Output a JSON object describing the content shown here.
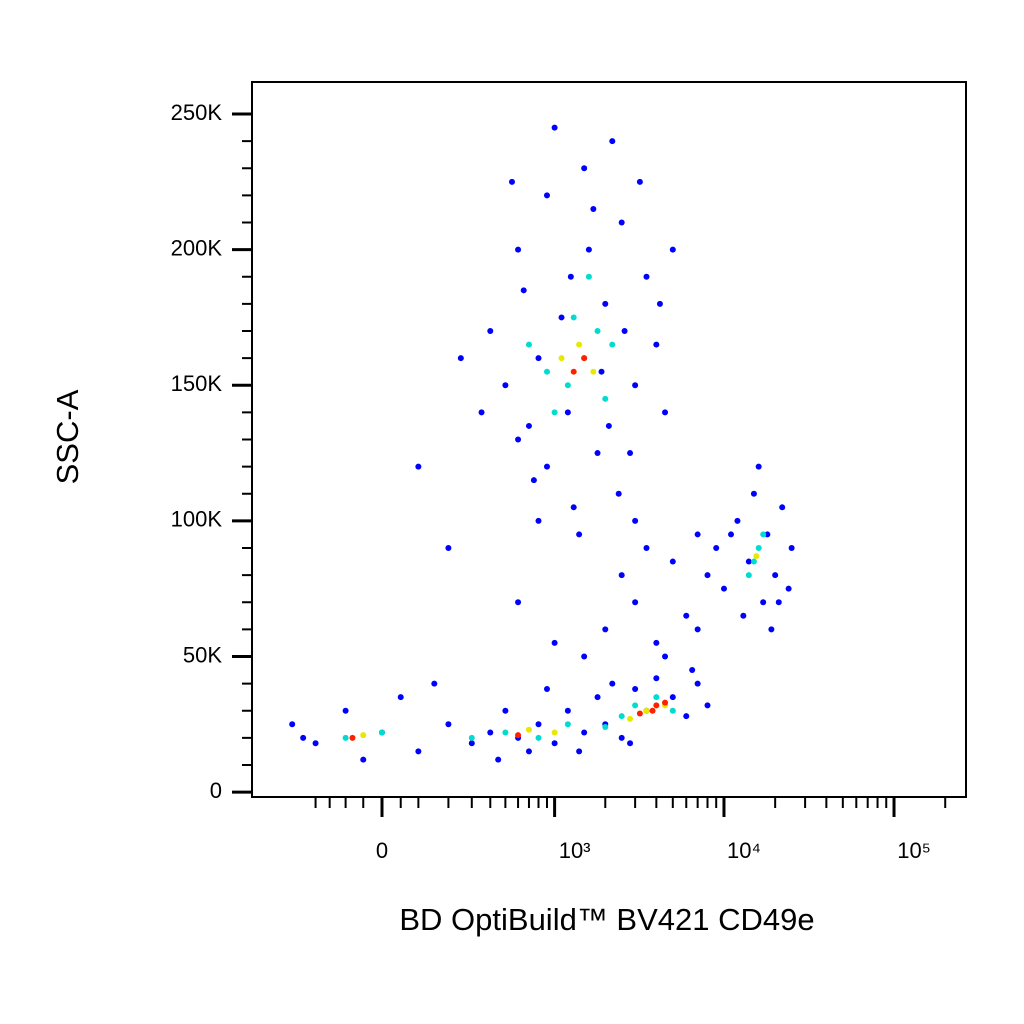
{
  "chart_data": {
    "type": "scatter",
    "x_label": "BD OptiBuild™ BV421 CD49e",
    "y_label": "SSC-A",
    "xscale": "asinh",
    "xscale_width": 195,
    "xlim": [
      -550,
      265000
    ],
    "ylim": [
      -1800,
      261800
    ],
    "xticks": [
      0,
      {
        "value": 1000,
        "label": "10³"
      },
      {
        "value": 10000,
        "label": "10⁴"
      },
      {
        "value": 100000,
        "label": "10⁵"
      }
    ],
    "xminor_ticks": [
      -200,
      -150,
      -100,
      -50,
      50,
      100,
      200,
      300,
      400,
      500,
      600,
      700,
      800,
      900,
      2000,
      3000,
      4000,
      5000,
      6000,
      7000,
      8000,
      9000,
      20000,
      30000,
      40000,
      50000,
      60000,
      70000,
      80000,
      90000,
      200000
    ],
    "yticks": [
      0,
      {
        "value": 50000,
        "label": "50K"
      },
      {
        "value": 100000,
        "label": "100K"
      },
      {
        "value": 150000,
        "label": "150K"
      },
      {
        "value": 200000,
        "label": "200K"
      },
      {
        "value": 250000,
        "label": "250K"
      }
    ],
    "yminor_ticks": [
      10000,
      20000,
      30000,
      40000,
      60000,
      70000,
      80000,
      90000,
      110000,
      120000,
      130000,
      140000,
      160000,
      170000,
      180000,
      190000,
      210000,
      220000,
      230000,
      240000
    ],
    "series": [
      {
        "color": "#0000ff",
        "x": [
          800,
          1200,
          2000,
          600,
          1500,
          3000,
          400,
          900,
          2500,
          1800,
          700,
          3500,
          1000,
          2200,
          500,
          1300,
          4000,
          2800,
          650,
          1600,
          1100,
          350,
          2400,
          900,
          3200,
          1400,
          5000,
          4500,
          750,
          1900,
          250,
          3000,
          550,
          1700,
          2600,
          1250,
          800,
          4200,
          600,
          2100,
          -300,
          -200,
          -100,
          0,
          100,
          50,
          -250,
          200,
          300,
          400,
          500,
          600,
          700,
          800,
          1000,
          1200,
          1500,
          1800,
          2000,
          2500,
          3000,
          3500,
          4000,
          5000,
          6000,
          7000,
          8000,
          6500,
          150,
          -50,
          450,
          900,
          1400,
          2200,
          2800,
          9000,
          10000,
          12000,
          14000,
          15000,
          17000,
          18000,
          20000,
          22000,
          25000,
          13000,
          16000,
          19000,
          11000,
          21000,
          8000,
          7000,
          24000,
          2000,
          3000,
          4000,
          5000,
          6000,
          1500,
          2500,
          7000,
          3500,
          100,
          200,
          600,
          4500,
          1000
        ],
        "y": [
          160000,
          140000,
          180000,
          200000,
          230000,
          150000,
          170000,
          120000,
          210000,
          125000,
          135000,
          190000,
          245000,
          240000,
          150000,
          105000,
          165000,
          125000,
          185000,
          200000,
          175000,
          140000,
          110000,
          220000,
          225000,
          95000,
          200000,
          140000,
          115000,
          155000,
          160000,
          100000,
          225000,
          215000,
          170000,
          190000,
          100000,
          180000,
          130000,
          135000,
          25000,
          18000,
          30000,
          22000,
          15000,
          35000,
          20000,
          25000,
          18000,
          22000,
          30000,
          20000,
          15000,
          25000,
          18000,
          30000,
          22000,
          35000,
          25000,
          20000,
          38000,
          30000,
          42000,
          35000,
          28000,
          40000,
          32000,
          45000,
          40000,
          12000,
          12000,
          38000,
          15000,
          40000,
          18000,
          90000,
          75000,
          100000,
          85000,
          110000,
          70000,
          95000,
          80000,
          105000,
          90000,
          65000,
          120000,
          60000,
          95000,
          70000,
          80000,
          95000,
          75000,
          60000,
          70000,
          55000,
          85000,
          65000,
          50000,
          80000,
          60000,
          90000,
          120000,
          90000,
          70000,
          50000,
          55000
        ]
      },
      {
        "color": "#00dcd0",
        "x": [
          1500,
          1200,
          1800,
          1000,
          2200,
          900,
          1600,
          2000,
          1300,
          700,
          0,
          -100,
          500,
          800,
          1200,
          2500,
          3000,
          4000,
          2000,
          5000,
          300,
          15000,
          16000,
          14000,
          17000
        ],
        "y": [
          160000,
          150000,
          170000,
          140000,
          165000,
          155000,
          190000,
          145000,
          175000,
          165000,
          22000,
          20000,
          22000,
          20000,
          25000,
          28000,
          32000,
          35000,
          24000,
          30000,
          20000,
          85000,
          90000,
          80000,
          95000
        ]
      },
      {
        "color": "#e8e800",
        "x": [
          1400,
          1700,
          1100,
          -50,
          700,
          1000,
          3500,
          4500,
          2800,
          15500
        ],
        "y": [
          165000,
          155000,
          160000,
          21000,
          23000,
          22000,
          30000,
          32000,
          27000,
          87000
        ]
      },
      {
        "color": "#ff2000",
        "x": [
          1500,
          1300,
          600,
          4000,
          3800,
          4500,
          3200,
          -80
        ],
        "y": [
          160000,
          155000,
          21000,
          32000,
          30000,
          33000,
          29000,
          20000
        ]
      }
    ]
  }
}
